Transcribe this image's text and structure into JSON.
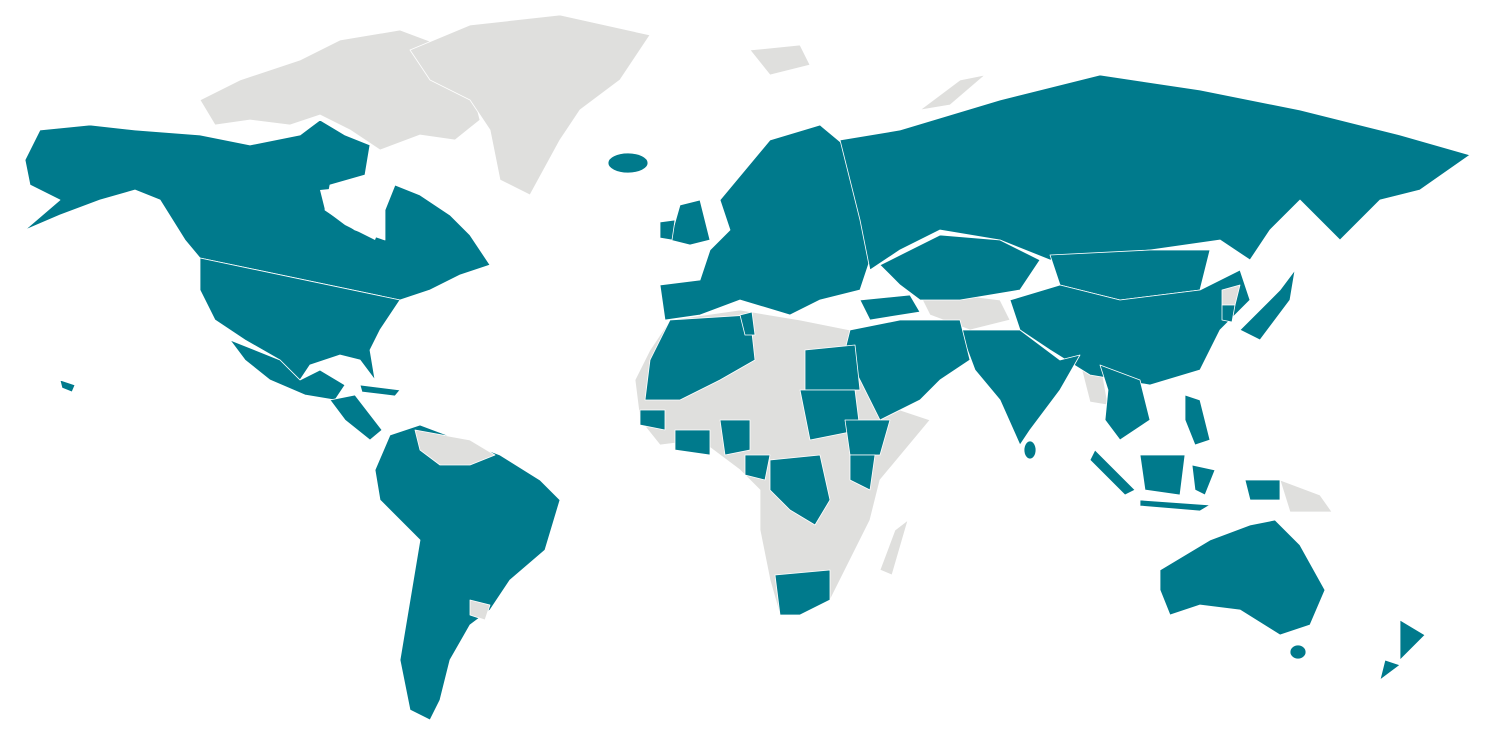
{
  "map": {
    "colors": {
      "highlighted": "#007a8c",
      "not_highlighted": "#dfdfdd",
      "background": "#ffffff",
      "border": "#ffffff"
    },
    "highlighted_regions": [
      "alaska-us",
      "canada",
      "united-states",
      "mexico",
      "central-america",
      "iceland",
      "south-america-main",
      "europe",
      "united-kingdom",
      "ireland",
      "russia",
      "kazakhstan",
      "mongolia",
      "china",
      "japan",
      "south-korea",
      "india",
      "sri-lanka",
      "turkey",
      "middle-east",
      "southeast-asia",
      "sumatra",
      "borneo",
      "java",
      "sulawesi",
      "papua-indonesia",
      "philippines",
      "australia",
      "tasmania",
      "new-zealand",
      "north-africa-west",
      "tunisia",
      "egypt",
      "sudan",
      "ethiopia",
      "kenya",
      "dr-congo",
      "nigeria",
      "ghana-ivory-coast",
      "senegal",
      "cameroon-gabon",
      "south-africa",
      "cuba"
    ],
    "grey_regions": [
      "arctic-islands",
      "greenland",
      "venezuela-guyana",
      "uruguay",
      "central-asia",
      "myanmar",
      "north-korea",
      "libya",
      "africa-other",
      "madagascar",
      "papua-new-guinea"
    ]
  }
}
